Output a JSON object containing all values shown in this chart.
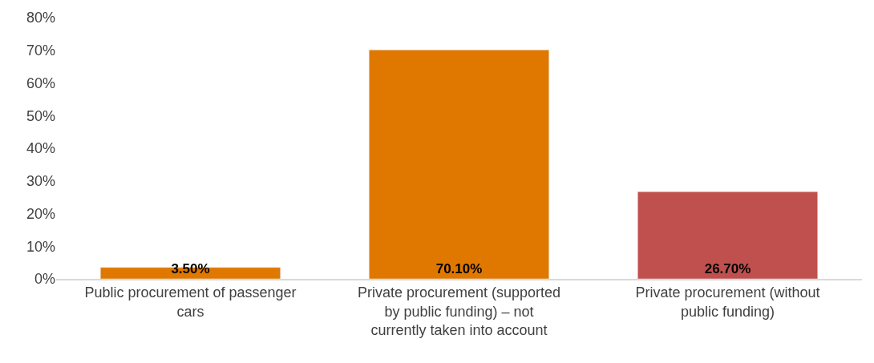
{
  "chart_data": {
    "type": "bar",
    "categories": [
      "Public procurement of passenger cars",
      "Private procurement (supported by public funding) – not currently taken into account",
      "Private procurement (without public funding)"
    ],
    "values": [
      3.5,
      70.1,
      26.7
    ],
    "colors": [
      "#e07800",
      "#e07800",
      "#c0504d"
    ],
    "value_labels": [
      "3.50%",
      "70.10%",
      "26.70%"
    ],
    "ylim": [
      0,
      80
    ],
    "yticks": [
      {
        "value": 0,
        "label": "0%"
      },
      {
        "value": 10,
        "label": "10%"
      },
      {
        "value": 20,
        "label": "20%"
      },
      {
        "value": 30,
        "label": "30%"
      },
      {
        "value": 40,
        "label": "40%"
      },
      {
        "value": 50,
        "label": "50%"
      },
      {
        "value": 60,
        "label": "60%"
      },
      {
        "value": 70,
        "label": "70%"
      },
      {
        "value": 80,
        "label": "80%"
      }
    ],
    "legend": false
  }
}
